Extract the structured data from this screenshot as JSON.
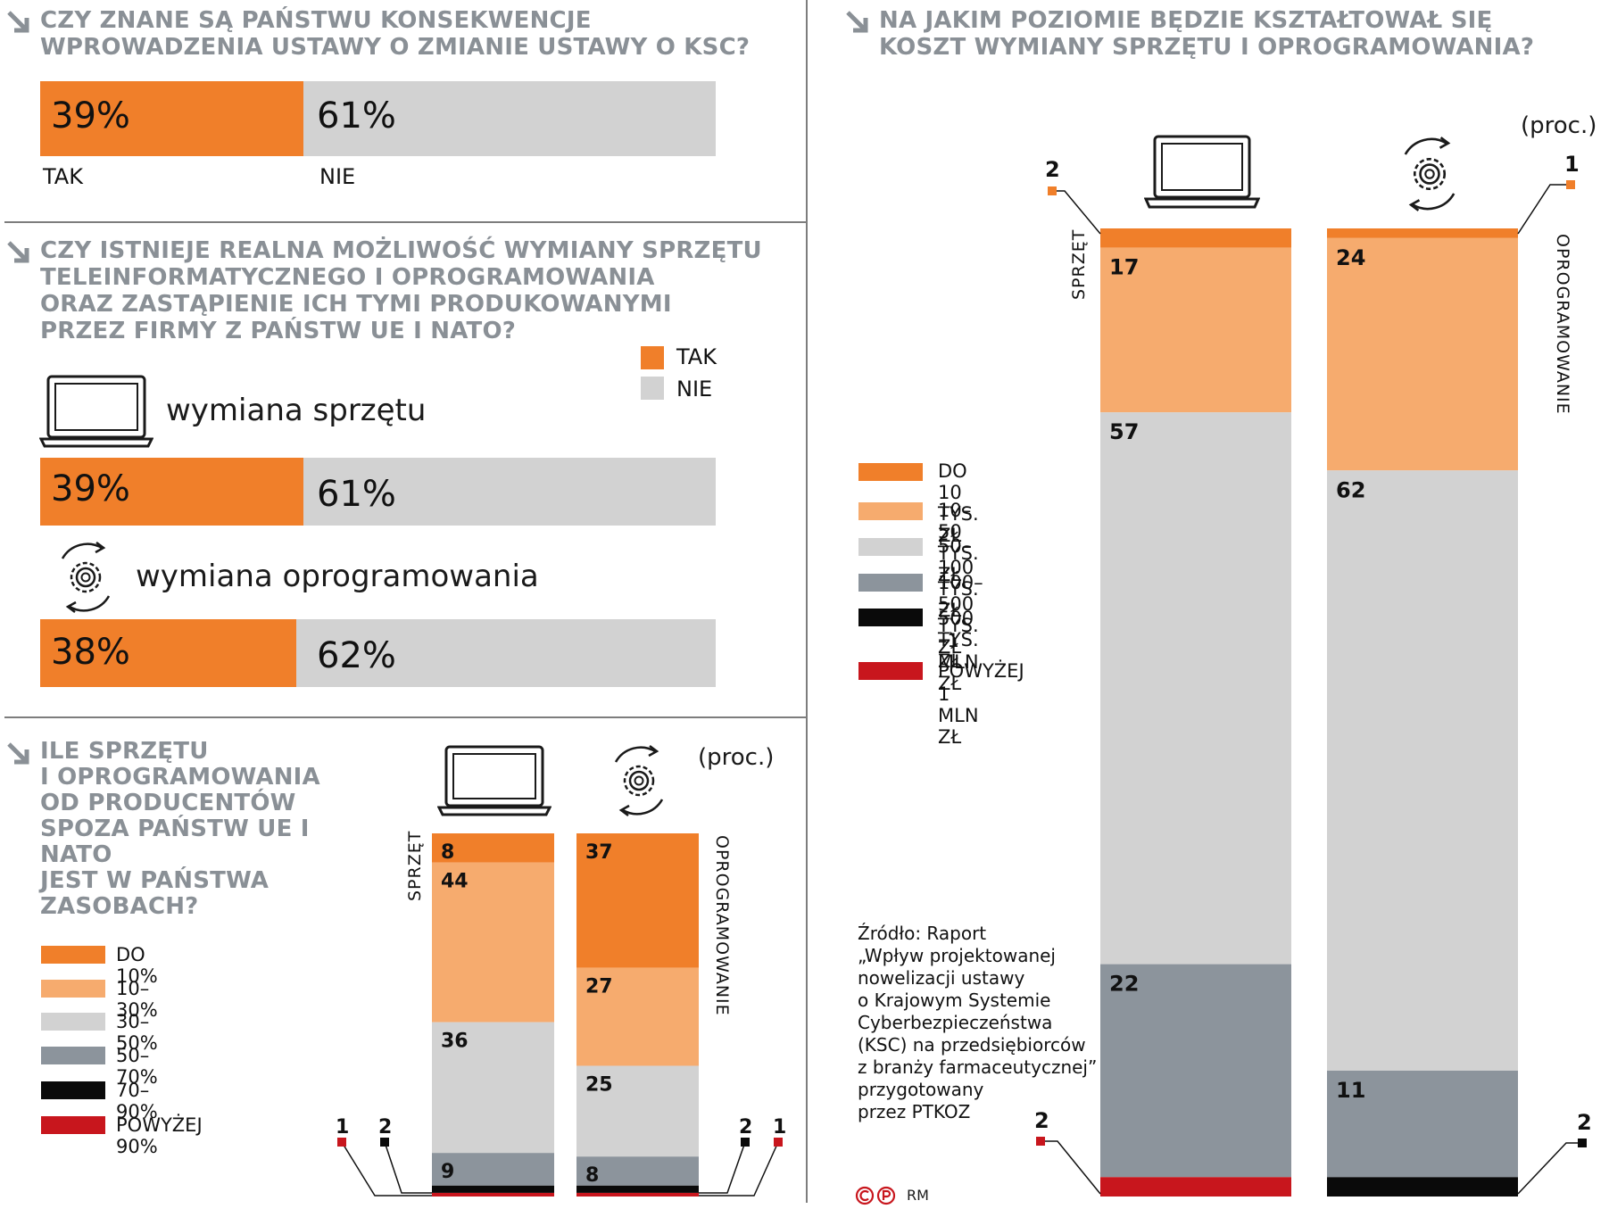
{
  "colors": {
    "orange": "#f07f2a",
    "light_orange": "#f6ab6e",
    "light_gray": "#d2d2d2",
    "dark_gray": "#8c949c",
    "black": "#0a0a0a",
    "red": "#c8161d",
    "title_gray": "#8a9096"
  },
  "q1": {
    "title_line1": "CZY ZNANE SĄ PAŃSTWU KONSEKWENCJE",
    "title_line2": "WPROWADZENIA USTAWY O ZMIANIE USTAWY O KSC?",
    "tak_pct": "39%",
    "nie_pct": "61%",
    "tak_label": "TAK",
    "nie_label": "NIE"
  },
  "q2": {
    "title_line1": "CZY ISTNIEJE REALNA MOŻLIWOŚĆ WYMIANY SPRZĘTU",
    "title_line2": "TELEINFORMATYCZNEGO I OPROGRAMOWANIA",
    "title_line3": "ORAZ ZASTĄPIENIE ICH TYMI PRODUKOWANYMI",
    "title_line4": "PRZEZ FIRMY Z PAŃSTW UE I NATO?",
    "legend_tak": "TAK",
    "legend_nie": "NIE",
    "hardware_label": "wymiana sprzętu",
    "hardware_tak": "39%",
    "hardware_nie": "61%",
    "software_label": "wymiana oprogramowania",
    "software_tak": "38%",
    "software_nie": "62%"
  },
  "q3": {
    "title_lines": [
      "ILE SPRZĘTU",
      "I OPROGRAMOWANIA",
      "OD PRODUCENTÓW",
      "SPOZA PAŃSTW UE I NATO",
      "JEST W PAŃSTWA",
      "ZASOBACH?"
    ],
    "unit": "(proc.)",
    "col1_label": "SPRZĘT",
    "col2_label": "OPROGRAMOWANIE",
    "legend": [
      "DO 10%",
      "10–30%",
      "30–50%",
      "50–70%",
      "70–90%",
      "POWYŻEJ 90%"
    ]
  },
  "q4": {
    "title_line1": "NA JAKIM POZIOMIE BĘDZIE KSZTAŁTOWAŁ SIĘ",
    "title_line2": "KOSZT WYMIANY SPRZĘTU I OPROGRAMOWANIA?",
    "unit": "(proc.)",
    "col1_label": "SPRZĘT",
    "col2_label": "OPROGRAMOWANIE",
    "legend_1": "DO 10 TYS. ZŁ",
    "legend_2": "10–50 TYS. ZŁ",
    "legend_3": "50–100 TYS. ZŁ",
    "legend_4": "100–500 TYS. ZŁ",
    "legend_5a": "500 TYS. ZŁ",
    "legend_5b": "–1 MLN ZŁ",
    "legend_6a": "POWYŻEJ",
    "legend_6b": "1 MLN ZŁ"
  },
  "source": {
    "lines": [
      "Źródło: Raport",
      "„Wpływ projektowanej",
      "nowelizacji ustawy",
      "o Krajowym Systemie",
      "Cyberbezpieczeństwa",
      "(KSC) na przedsiębiorców",
      "z branży farmaceutycznej”",
      "przygotowany",
      "przez PTKOZ"
    ],
    "credit": "RM"
  },
  "chart_data": [
    {
      "type": "bar",
      "orientation": "horizontal-stacked",
      "categories": [
        "CZY ZNANE SĄ PAŃSTWU KONSEKWENCJE WPROWADZENIA USTAWY O ZMIANIE USTAWY O KSC?"
      ],
      "series": [
        {
          "name": "TAK",
          "values": [
            39
          ]
        },
        {
          "name": "NIE",
          "values": [
            61
          ]
        }
      ]
    },
    {
      "type": "bar",
      "orientation": "horizontal-stacked",
      "categories": [
        "wymiana sprzętu",
        "wymiana oprogramowania"
      ],
      "series": [
        {
          "name": "TAK",
          "values": [
            39,
            38
          ]
        },
        {
          "name": "NIE",
          "values": [
            61,
            62
          ]
        }
      ]
    },
    {
      "type": "bar",
      "orientation": "vertical-stacked",
      "categories": [
        "SPRZĘT",
        "OPROGRAMOWANIE"
      ],
      "series": [
        {
          "name": "DO 10%",
          "values": [
            8,
            37
          ]
        },
        {
          "name": "10–30%",
          "values": [
            44,
            27
          ]
        },
        {
          "name": "30–50%",
          "values": [
            36,
            25
          ]
        },
        {
          "name": "50–70%",
          "values": [
            9,
            8
          ]
        },
        {
          "name": "70–90%",
          "values": [
            2,
            2
          ]
        },
        {
          "name": "POWYŻEJ 90%",
          "values": [
            1,
            1
          ]
        }
      ]
    },
    {
      "type": "bar",
      "orientation": "vertical-stacked",
      "categories": [
        "SPRZĘT",
        "OPROGRAMOWANIE"
      ],
      "series": [
        {
          "name": "DO 10 TYS. ZŁ",
          "values": [
            2,
            1
          ]
        },
        {
          "name": "10–50 TYS. ZŁ",
          "values": [
            17,
            24
          ]
        },
        {
          "name": "50–100 TYS. ZŁ",
          "values": [
            57,
            62
          ]
        },
        {
          "name": "100–500 TYS. ZŁ",
          "values": [
            22,
            11
          ]
        },
        {
          "name": "500 TYS. ZŁ –1 MLN ZŁ",
          "values": [
            0,
            2
          ]
        },
        {
          "name": "POWYŻEJ 1 MLN ZŁ",
          "values": [
            2,
            0
          ]
        }
      ]
    }
  ]
}
